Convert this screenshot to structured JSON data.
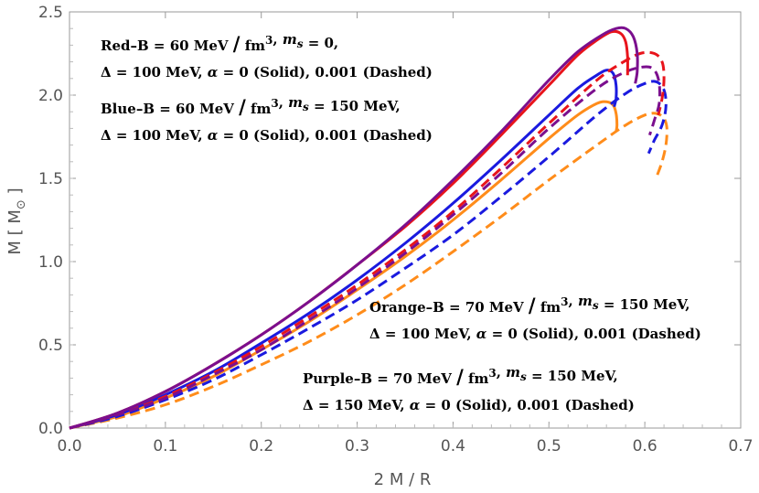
{
  "chart_data": {
    "type": "line",
    "xlabel": "2 M / R",
    "ylabel": "M [ M",
    "ylabel_subscript": "⊙",
    "ylabel_close": " ]",
    "xlim": [
      0,
      0.7
    ],
    "ylim": [
      0,
      2.5
    ],
    "x_ticks": [
      0.0,
      0.1,
      0.2,
      0.3,
      0.4,
      0.5,
      0.6,
      0.7
    ],
    "y_ticks": [
      0.0,
      0.5,
      1.0,
      1.5,
      2.0,
      2.5
    ],
    "x_tick_labels": [
      "0.0",
      "0.1",
      "0.2",
      "0.3",
      "0.4",
      "0.5",
      "0.6",
      "0.7"
    ],
    "y_tick_labels": [
      "0.0",
      "0.5",
      "1.0",
      "1.5",
      "2.0",
      "2.5"
    ],
    "colors": {
      "red": "#e8141b",
      "blue": "#1a1adf",
      "purple": "#7b0f8e",
      "orange": "#ff8c1a"
    },
    "series": [
      {
        "name": "Red, alpha = 0 (Solid)",
        "color": "red",
        "dash": false,
        "points": [
          [
            0,
            0
          ],
          [
            0.05,
            0.09
          ],
          [
            0.1,
            0.22
          ],
          [
            0.15,
            0.38
          ],
          [
            0.2,
            0.56
          ],
          [
            0.25,
            0.76
          ],
          [
            0.3,
            0.98
          ],
          [
            0.35,
            1.21
          ],
          [
            0.4,
            1.47
          ],
          [
            0.45,
            1.76
          ],
          [
            0.5,
            2.06
          ],
          [
            0.53,
            2.24
          ],
          [
            0.55,
            2.33
          ],
          [
            0.565,
            2.38
          ],
          [
            0.575,
            2.37
          ],
          [
            0.58,
            2.32
          ],
          [
            0.582,
            2.23
          ],
          [
            0.582,
            2.12
          ]
        ]
      },
      {
        "name": "Red, alpha = 0.001 (Dashed)",
        "color": "red",
        "dash": true,
        "points": [
          [
            0,
            0
          ],
          [
            0.05,
            0.08
          ],
          [
            0.1,
            0.19
          ],
          [
            0.15,
            0.33
          ],
          [
            0.2,
            0.49
          ],
          [
            0.25,
            0.67
          ],
          [
            0.3,
            0.86
          ],
          [
            0.35,
            1.07
          ],
          [
            0.4,
            1.3
          ],
          [
            0.45,
            1.56
          ],
          [
            0.5,
            1.83
          ],
          [
            0.55,
            2.09
          ],
          [
            0.575,
            2.19
          ],
          [
            0.595,
            2.25
          ],
          [
            0.61,
            2.25
          ],
          [
            0.618,
            2.2
          ],
          [
            0.62,
            2.1
          ],
          [
            0.618,
            1.98
          ],
          [
            0.614,
            1.88
          ]
        ]
      },
      {
        "name": "Blue, alpha = 0 (Solid)",
        "color": "blue",
        "dash": false,
        "points": [
          [
            0,
            0
          ],
          [
            0.05,
            0.08
          ],
          [
            0.1,
            0.2
          ],
          [
            0.15,
            0.34
          ],
          [
            0.2,
            0.51
          ],
          [
            0.25,
            0.69
          ],
          [
            0.3,
            0.89
          ],
          [
            0.35,
            1.11
          ],
          [
            0.4,
            1.35
          ],
          [
            0.45,
            1.61
          ],
          [
            0.5,
            1.88
          ],
          [
            0.53,
            2.04
          ],
          [
            0.55,
            2.12
          ],
          [
            0.56,
            2.15
          ],
          [
            0.567,
            2.13
          ],
          [
            0.57,
            2.06
          ],
          [
            0.57,
            1.98
          ],
          [
            0.568,
            1.93
          ]
        ]
      },
      {
        "name": "Blue, alpha = 0.001 (Dashed)",
        "color": "blue",
        "dash": true,
        "points": [
          [
            0,
            0
          ],
          [
            0.05,
            0.07
          ],
          [
            0.1,
            0.17
          ],
          [
            0.15,
            0.29
          ],
          [
            0.2,
            0.44
          ],
          [
            0.25,
            0.6
          ],
          [
            0.3,
            0.77
          ],
          [
            0.35,
            0.96
          ],
          [
            0.4,
            1.16
          ],
          [
            0.45,
            1.39
          ],
          [
            0.5,
            1.63
          ],
          [
            0.55,
            1.88
          ],
          [
            0.58,
            2.01
          ],
          [
            0.6,
            2.07
          ],
          [
            0.612,
            2.08
          ],
          [
            0.62,
            2.03
          ],
          [
            0.622,
            1.93
          ],
          [
            0.618,
            1.82
          ],
          [
            0.61,
            1.73
          ],
          [
            0.604,
            1.65
          ]
        ]
      },
      {
        "name": "Purple, alpha = 0 (Solid)",
        "color": "purple",
        "dash": false,
        "points": [
          [
            0,
            0
          ],
          [
            0.05,
            0.09
          ],
          [
            0.1,
            0.22
          ],
          [
            0.15,
            0.38
          ],
          [
            0.2,
            0.56
          ],
          [
            0.25,
            0.76
          ],
          [
            0.3,
            0.98
          ],
          [
            0.35,
            1.22
          ],
          [
            0.4,
            1.49
          ],
          [
            0.45,
            1.78
          ],
          [
            0.5,
            2.09
          ],
          [
            0.53,
            2.26
          ],
          [
            0.555,
            2.36
          ],
          [
            0.57,
            2.4
          ],
          [
            0.58,
            2.4
          ],
          [
            0.588,
            2.35
          ],
          [
            0.592,
            2.25
          ],
          [
            0.592,
            2.14
          ],
          [
            0.59,
            2.07
          ]
        ]
      },
      {
        "name": "Purple, alpha = 0.001 (Dashed)",
        "color": "purple",
        "dash": true,
        "points": [
          [
            0,
            0
          ],
          [
            0.05,
            0.08
          ],
          [
            0.1,
            0.18
          ],
          [
            0.15,
            0.32
          ],
          [
            0.2,
            0.47
          ],
          [
            0.25,
            0.65
          ],
          [
            0.3,
            0.84
          ],
          [
            0.35,
            1.05
          ],
          [
            0.4,
            1.28
          ],
          [
            0.45,
            1.53
          ],
          [
            0.5,
            1.8
          ],
          [
            0.55,
            2.04
          ],
          [
            0.58,
            2.14
          ],
          [
            0.6,
            2.17
          ],
          [
            0.61,
            2.15
          ],
          [
            0.615,
            2.07
          ],
          [
            0.615,
            1.95
          ],
          [
            0.61,
            1.85
          ],
          [
            0.605,
            1.76
          ]
        ]
      },
      {
        "name": "Orange, alpha = 0 (Solid)",
        "color": "orange",
        "dash": false,
        "points": [
          [
            0,
            0
          ],
          [
            0.05,
            0.07
          ],
          [
            0.1,
            0.18
          ],
          [
            0.15,
            0.31
          ],
          [
            0.2,
            0.47
          ],
          [
            0.25,
            0.64
          ],
          [
            0.3,
            0.83
          ],
          [
            0.35,
            1.03
          ],
          [
            0.4,
            1.25
          ],
          [
            0.45,
            1.49
          ],
          [
            0.5,
            1.74
          ],
          [
            0.53,
            1.88
          ],
          [
            0.55,
            1.95
          ],
          [
            0.56,
            1.96
          ],
          [
            0.567,
            1.94
          ],
          [
            0.57,
            1.89
          ],
          [
            0.571,
            1.82
          ],
          [
            0.57,
            1.78
          ]
        ]
      },
      {
        "name": "Orange, alpha = 0.001 (Dashed)",
        "color": "orange",
        "dash": true,
        "points": [
          [
            0,
            0
          ],
          [
            0.05,
            0.06
          ],
          [
            0.1,
            0.14
          ],
          [
            0.15,
            0.25
          ],
          [
            0.2,
            0.38
          ],
          [
            0.25,
            0.52
          ],
          [
            0.3,
            0.68
          ],
          [
            0.35,
            0.86
          ],
          [
            0.4,
            1.06
          ],
          [
            0.45,
            1.27
          ],
          [
            0.5,
            1.49
          ],
          [
            0.55,
            1.7
          ],
          [
            0.58,
            1.82
          ],
          [
            0.6,
            1.88
          ],
          [
            0.612,
            1.89
          ],
          [
            0.62,
            1.86
          ],
          [
            0.623,
            1.8
          ],
          [
            0.622,
            1.7
          ],
          [
            0.618,
            1.6
          ],
          [
            0.613,
            1.52
          ]
        ]
      }
    ],
    "annotations": [
      {
        "id": "red",
        "lines": [
          [
            {
              "t": "Red–B = 60 MeV "
            },
            {
              "t": "/",
              "big": true
            },
            {
              "t": " fm"
            },
            {
              "t": "3",
              "sup": true
            },
            {
              "t": ", "
            },
            {
              "t": "m",
              "it": true
            },
            {
              "t": "s",
              "sub": true,
              "it": true
            },
            {
              "t": " = 0,"
            }
          ],
          [
            {
              "t": "Δ = 100 MeV, "
            },
            {
              "t": "α",
              "it": true
            },
            {
              "t": " = 0 (Solid), 0.001 (Dashed)"
            }
          ]
        ]
      },
      {
        "id": "blue",
        "lines": [
          [
            {
              "t": "Blue–B = 60 MeV "
            },
            {
              "t": "/",
              "big": true
            },
            {
              "t": " fm"
            },
            {
              "t": "3",
              "sup": true
            },
            {
              "t": ", "
            },
            {
              "t": "m",
              "it": true
            },
            {
              "t": "s",
              "sub": true,
              "it": true
            },
            {
              "t": " = 150 MeV,"
            }
          ],
          [
            {
              "t": "Δ = 100 MeV, "
            },
            {
              "t": "α",
              "it": true
            },
            {
              "t": " = 0 (Solid), 0.001 (Dashed)"
            }
          ]
        ]
      },
      {
        "id": "orange",
        "lines": [
          [
            {
              "t": "Orange–B = 70 MeV "
            },
            {
              "t": "/",
              "big": true
            },
            {
              "t": " fm"
            },
            {
              "t": "3",
              "sup": true
            },
            {
              "t": ", "
            },
            {
              "t": "m",
              "it": true
            },
            {
              "t": "s",
              "sub": true,
              "it": true
            },
            {
              "t": " = 150 MeV,"
            }
          ],
          [
            {
              "t": "Δ = 100 MeV, "
            },
            {
              "t": "α",
              "it": true
            },
            {
              "t": " = 0 (Solid), 0.001 (Dashed)"
            }
          ]
        ]
      },
      {
        "id": "purple",
        "lines": [
          [
            {
              "t": "Purple–B = 70 MeV "
            },
            {
              "t": "/",
              "big": true
            },
            {
              "t": " fm"
            },
            {
              "t": "3",
              "sup": true
            },
            {
              "t": ", "
            },
            {
              "t": "m",
              "it": true
            },
            {
              "t": "s",
              "sub": true,
              "it": true
            },
            {
              "t": " = 150 MeV,"
            }
          ],
          [
            {
              "t": "Δ = 150 MeV, "
            },
            {
              "t": "α",
              "it": true
            },
            {
              "t": " = 0 (Solid), 0.001 (Dashed)"
            }
          ]
        ]
      }
    ]
  }
}
